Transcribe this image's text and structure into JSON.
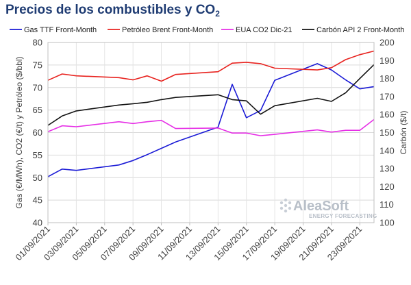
{
  "title": {
    "main": "Precios de los combustibles y CO",
    "sub": "2"
  },
  "watermark": {
    "name": "AleaSoft",
    "tagline": "ENERGY FORECASTING"
  },
  "chart_data": {
    "type": "line",
    "x": [
      "01/09/2021",
      "02/09/2021",
      "03/09/2021",
      "06/09/2021",
      "07/09/2021",
      "08/09/2021",
      "09/09/2021",
      "10/09/2021",
      "13/09/2021",
      "14/09/2021",
      "15/09/2021",
      "16/09/2021",
      "17/09/2021",
      "20/09/2021",
      "21/09/2021",
      "22/09/2021",
      "23/09/2021",
      "24/09/2021"
    ],
    "x_tick_labels": [
      "01/09/2021",
      "03/09/2021",
      "05/09/2021",
      "07/09/2021",
      "09/09/2021",
      "11/09/2021",
      "13/09/2021",
      "15/09/2021",
      "17/09/2021",
      "19/09/2021",
      "21/09/2021",
      "23/09/2021"
    ],
    "y_left": {
      "label": "Gas (€/MWh), CO2 (€/t)  y Petróleo ($/bbl)",
      "lim": [
        40,
        80
      ],
      "ticks": [
        40,
        45,
        50,
        55,
        60,
        65,
        70,
        75,
        80
      ]
    },
    "y_right": {
      "label": "Carbón ($/t)",
      "lim": [
        100,
        200
      ],
      "ticks": [
        100,
        110,
        120,
        130,
        140,
        150,
        160,
        170,
        180,
        190,
        200
      ]
    },
    "grid": true,
    "legend": "top",
    "series": [
      {
        "name": "Gas TTF Front-Month",
        "color": "#1a1ad6",
        "axis": "left",
        "values": [
          50.2,
          51.9,
          51.6,
          52.8,
          53.8,
          55.1,
          56.5,
          57.9,
          61.2,
          70.7,
          63.3,
          64.9,
          71.6,
          75.3,
          73.9,
          71.7,
          69.7,
          70.2
        ]
      },
      {
        "name": "Petróleo Brent Front-Month",
        "color": "#e8231f",
        "axis": "left",
        "values": [
          71.6,
          73.0,
          72.6,
          72.2,
          71.7,
          72.6,
          71.4,
          72.9,
          73.5,
          75.4,
          75.6,
          75.3,
          74.3,
          73.9,
          74.4,
          76.2,
          77.3,
          78.1
        ]
      },
      {
        "name": "EUA CO2 Dic-21",
        "color": "#e62ee6",
        "axis": "left",
        "values": [
          60.2,
          61.5,
          61.3,
          62.4,
          62.0,
          62.4,
          62.7,
          60.9,
          61.0,
          59.9,
          59.9,
          59.3,
          59.6,
          60.6,
          60.1,
          60.5,
          60.5,
          62.9
        ]
      },
      {
        "name": "Carbón API 2 Front-Month",
        "color": "#111111",
        "axis": "right",
        "values": [
          154.0,
          159.2,
          162.0,
          165.3,
          166.0,
          166.8,
          168.3,
          169.5,
          171.0,
          168.3,
          167.6,
          160.2,
          164.9,
          169.0,
          167.3,
          172.1,
          180.0,
          187.7
        ]
      }
    ]
  }
}
